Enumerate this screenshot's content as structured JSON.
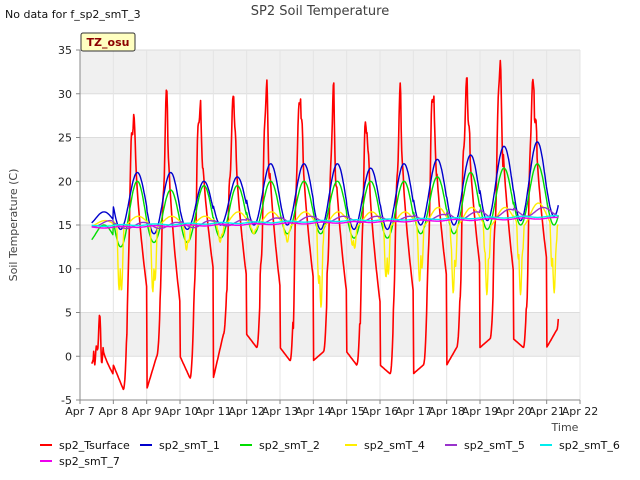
{
  "header": {
    "no_data_message": "No data for f_sp2_smT_3"
  },
  "chart_data": {
    "type": "line",
    "title": "SP2 Soil Temperature",
    "xlabel": "Time",
    "ylabel": "Soil Temperature (C)",
    "xlim": [
      7,
      22
    ],
    "ylim": [
      -5,
      35
    ],
    "grid": true,
    "legend": "bottom",
    "tag": "TZ_osu",
    "x_tick_labels": [
      "Apr 7",
      "Apr 8",
      "Apr 9",
      "Apr 10",
      "Apr 11",
      "Apr 12",
      "Apr 13",
      "Apr 14",
      "Apr 15",
      "Apr 16",
      "Apr 17",
      "Apr 18",
      "Apr 19",
      "Apr 20",
      "Apr 21",
      "Apr 22"
    ],
    "y_ticks": [
      -5,
      0,
      5,
      10,
      15,
      20,
      25,
      30,
      35
    ],
    "day_peak_hour": 0.62,
    "series": [
      {
        "name": "sp2_Tsurface",
        "color": "#ff0000",
        "kind": "surface",
        "start": 7.35,
        "end": 21.35,
        "peaks": [
          2.5,
          29,
          29,
          29.5,
          30,
          30.5,
          31,
          29,
          28,
          29.5,
          30.5,
          32,
          33,
          32.5,
          31.5
        ],
        "mins": [
          -1,
          -3.8,
          0,
          -2.5,
          2.5,
          1,
          -0.5,
          0.5,
          -1,
          -2,
          -1,
          1,
          2,
          1,
          3
        ]
      },
      {
        "name": "sp2_smT_1",
        "color": "#0000cc",
        "kind": "damped",
        "start": 7.35,
        "end": 21.35,
        "peaks": [
          16.5,
          21,
          21,
          20,
          20.5,
          22,
          22,
          22,
          21.5,
          22,
          22.5,
          23,
          24,
          24.5,
          24
        ],
        "mins": [
          15,
          14.5,
          14,
          14.5,
          15,
          15,
          15,
          14.5,
          14.5,
          14.5,
          15,
          15,
          15.5,
          15.5,
          16
        ]
      },
      {
        "name": "sp2_smT_2",
        "color": "#00dd00",
        "kind": "damped",
        "start": 7.35,
        "end": 21.35,
        "peaks": [
          15,
          20,
          19,
          19.5,
          19.5,
          20,
          20,
          20,
          20,
          20,
          20.5,
          21,
          21.5,
          22,
          22
        ],
        "mins": [
          13,
          12.5,
          13,
          13,
          13.5,
          14,
          14,
          14,
          13.5,
          13.5,
          14,
          14,
          14.5,
          15,
          15
        ]
      },
      {
        "name": "sp2_smT_4",
        "color": "#ffee00",
        "kind": "spiky",
        "start": 7.35,
        "end": 21.35,
        "peaks": [
          15.5,
          16,
          16,
          16,
          16.5,
          16.5,
          16.5,
          16.5,
          16.5,
          16.5,
          17,
          17,
          17,
          17.5,
          17.5
        ],
        "mins": [
          -2.5,
          6,
          6.5,
          12,
          13,
          14,
          13,
          5,
          12,
          8,
          8,
          7,
          7,
          7,
          7
        ]
      },
      {
        "name": "sp2_smT_5",
        "color": "#9933cc",
        "kind": "slow",
        "start": 7.35,
        "end": 21.35,
        "peaks": [
          15.5,
          15.3,
          15.3,
          15.5,
          15.6,
          15.8,
          16,
          16,
          16,
          16,
          16.2,
          16.5,
          16.8,
          17,
          17
        ],
        "mins": [
          14.8,
          14.6,
          14.6,
          14.7,
          14.9,
          15.1,
          15.2,
          15.3,
          15.3,
          15.4,
          15.5,
          15.6,
          15.8,
          16,
          16
        ]
      },
      {
        "name": "sp2_smT_6",
        "color": "#00eeee",
        "kind": "flat",
        "start": 7.35,
        "end": 21.35,
        "y0": 14.9,
        "y1": 16.0
      },
      {
        "name": "sp2_smT_7",
        "color": "#ee00ee",
        "kind": "flat",
        "start": 7.35,
        "end": 21.35,
        "y0": 14.7,
        "y1": 15.8
      }
    ]
  }
}
